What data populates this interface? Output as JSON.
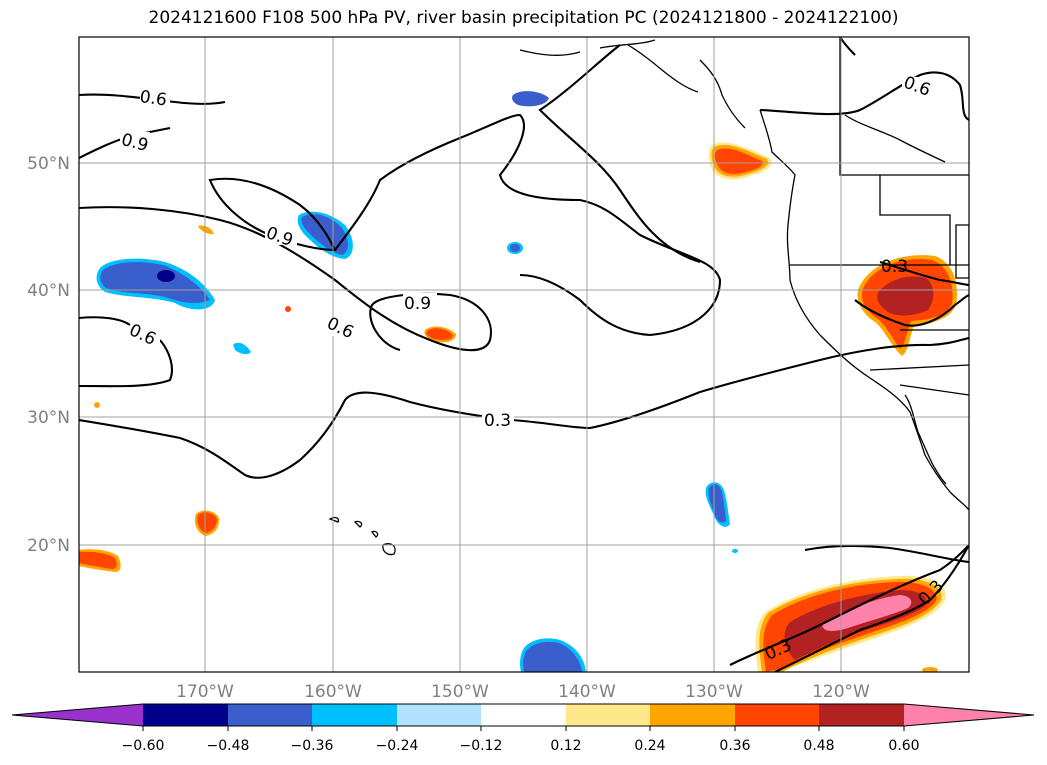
{
  "title": "2024121600 F108 500 hPa PV, river basin precipitation PC (2024121800 - 2024122100)",
  "map": {
    "lat_ticks": [
      "50°N",
      "40°N",
      "30°N",
      "20°N"
    ],
    "lon_ticks": [
      "170°W",
      "160°W",
      "150°W",
      "140°W",
      "130°W",
      "120°W"
    ],
    "grid": true,
    "coastline_color": "#000000"
  },
  "contours": {
    "variable": "500 hPa PV",
    "levels": [
      0.3,
      0.6,
      0.9
    ],
    "labels": [
      "0.6",
      "0.9",
      "0.9",
      "0.9",
      "0.6",
      "0.6",
      "0.3",
      "0.6",
      "0.3",
      "0.3",
      "0.3"
    ]
  },
  "colorbar": {
    "tick_labels": [
      "−0.60",
      "−0.48",
      "−0.36",
      "−0.24",
      "−0.12",
      "0.12",
      "0.24",
      "0.36",
      "0.48",
      "0.60"
    ],
    "colors": [
      "#9932cc",
      "#00008b",
      "#3a5fcd",
      "#00bfff",
      "#b0e2ff",
      "#ffffff",
      "#ffe88a",
      "#ffa500",
      "#ff4500",
      "#b22222",
      "#ff82ab"
    ],
    "extend": "both"
  }
}
